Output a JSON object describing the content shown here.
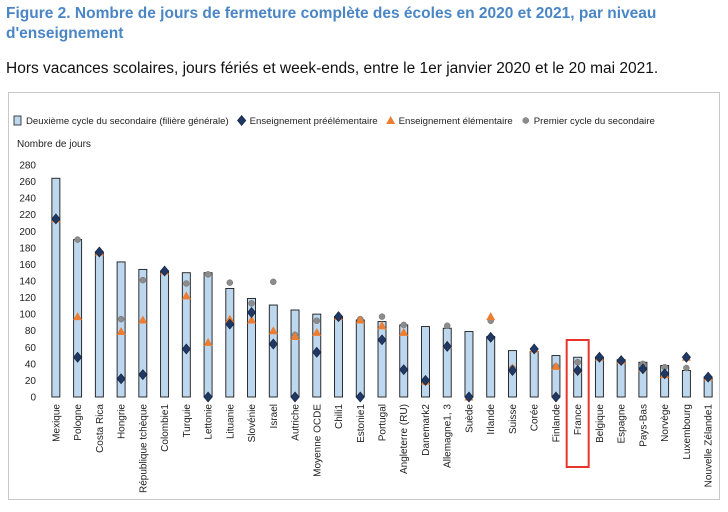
{
  "title": "Figure 2. Nombre de jours de fermeture complète des écoles en 2020 et 2021, par niveau d'enseignement",
  "subtitle": "Hors vacances scolaires, jours fériés et week-ends, entre le 1er janvier 2020 et le 20 mai 2021.",
  "chart_data": {
    "type": "bar",
    "ylabel": "Nombre de jours",
    "xlabel": "",
    "ylim": [
      0,
      280
    ],
    "yticks": [
      0,
      20,
      40,
      60,
      80,
      100,
      120,
      140,
      160,
      180,
      200,
      220,
      240,
      260,
      280
    ],
    "grid": false,
    "legend_position": "top",
    "highlighted_category": "France",
    "categories": [
      "Mexique",
      "Pologne",
      "Costa Rica",
      "Hongrie",
      "République tchèque",
      "Colombie1",
      "Turquie",
      "Lettonie",
      "Lituanie",
      "Slovénie",
      "Israel",
      "Autriche",
      "Moyenne OCDE",
      "Chili1",
      "Estonie1",
      "Portugal",
      "Angleterre (RU)",
      "Danemark2",
      "Allemagne1, 3",
      "Suède",
      "Irlande",
      "Suisse",
      "Corée",
      "Finlande",
      "France",
      "Belgique",
      "Espagne",
      "Pays-Bas",
      "Norvège",
      "Luxembourg",
      "Nouvelle Zélande1"
    ],
    "series": [
      {
        "name": "Deuxième cycle du secondaire (filière générale)",
        "marker": "bar",
        "color": "#bdd7ee",
        "values": [
          264,
          190,
          175,
          163,
          154,
          152,
          150,
          150,
          131,
          119,
          111,
          105,
          100,
          97,
          93,
          91,
          87,
          85,
          83,
          79,
          73,
          56,
          55,
          50,
          48,
          48,
          45,
          42,
          38,
          32,
          24
        ]
      },
      {
        "name": "Enseignement préélémentaire",
        "marker": "diamond",
        "color": "#1f3864",
        "values": [
          215,
          48,
          175,
          22,
          27,
          152,
          58,
          0,
          88,
          102,
          64,
          0,
          54,
          97,
          0,
          69,
          33,
          20,
          61,
          0,
          72,
          32,
          58,
          0,
          32,
          48,
          44,
          34,
          28,
          48,
          24
        ]
      },
      {
        "name": "Enseignement élémentaire",
        "marker": "triangle",
        "color": "#ed7d31",
        "values": [
          215,
          97,
          175,
          79,
          93,
          152,
          122,
          66,
          94,
          93,
          80,
          73,
          78,
          97,
          93,
          86,
          78,
          19,
          63,
          0,
          97,
          35,
          58,
          37,
          33,
          48,
          44,
          35,
          27,
          48,
          24
        ]
      },
      {
        "name": "Premier cycle du secondaire",
        "marker": "circle",
        "color": "#8c8c8c",
        "values": [
          215,
          190,
          175,
          94,
          141,
          152,
          137,
          148,
          138,
          113,
          139,
          75,
          92,
          97,
          94,
          97,
          87,
          20,
          86,
          0,
          92,
          35,
          58,
          37,
          42,
          48,
          44,
          40,
          36,
          35,
          24
        ]
      }
    ]
  }
}
